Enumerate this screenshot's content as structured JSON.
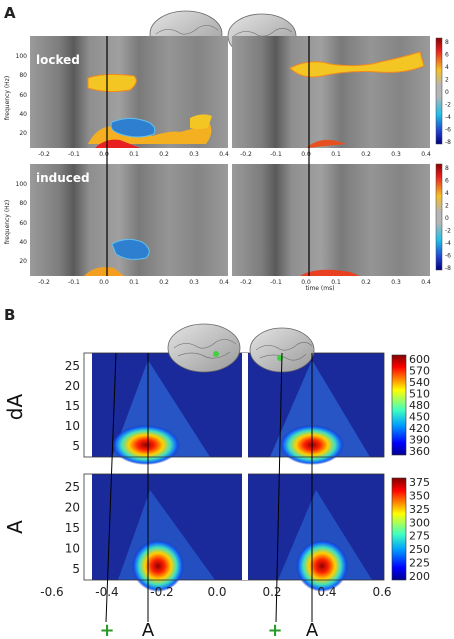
{
  "panel_a": {
    "label": "A",
    "rows": [
      {
        "label": "locked",
        "ylabel": "frequency (Hz)"
      },
      {
        "label": "induced",
        "ylabel": "frequency (Hz)"
      }
    ],
    "xticks": [
      "-0.2",
      "-0.1",
      "0.0",
      "0.1",
      "0.2",
      "0.3",
      "0.4"
    ],
    "yticks": [
      "20",
      "40",
      "60",
      "80",
      "100"
    ],
    "xlabel": "time (ms)",
    "colorbar_ticks": [
      "8",
      "6",
      "4",
      "2",
      "0",
      "-2",
      "-4",
      "-6",
      "-8"
    ],
    "colors": {
      "gray_bg": "#8d8d8d",
      "pos": "#f0c020",
      "neg": "#2f7fd0"
    }
  },
  "panel_b": {
    "label": "B",
    "rows": [
      {
        "label": "dA",
        "colorbar_ticks": [
          "600",
          "570",
          "540",
          "510",
          "480",
          "450",
          "420",
          "390",
          "360"
        ]
      },
      {
        "label": "A",
        "colorbar_ticks": [
          "375",
          "350",
          "325",
          "300",
          "275",
          "250",
          "225",
          "200"
        ]
      }
    ],
    "yticks": [
      "25",
      "20",
      "15",
      "10",
      "5"
    ],
    "xticks": [
      "-0.6",
      "-0.4",
      "-0.2",
      "0.0",
      "0.2",
      "0.4",
      "0.6"
    ],
    "markers": [
      "+",
      "A"
    ],
    "colors": {
      "jet_bg": "#1a2a9a",
      "plus": "#2a9a2a"
    }
  }
}
